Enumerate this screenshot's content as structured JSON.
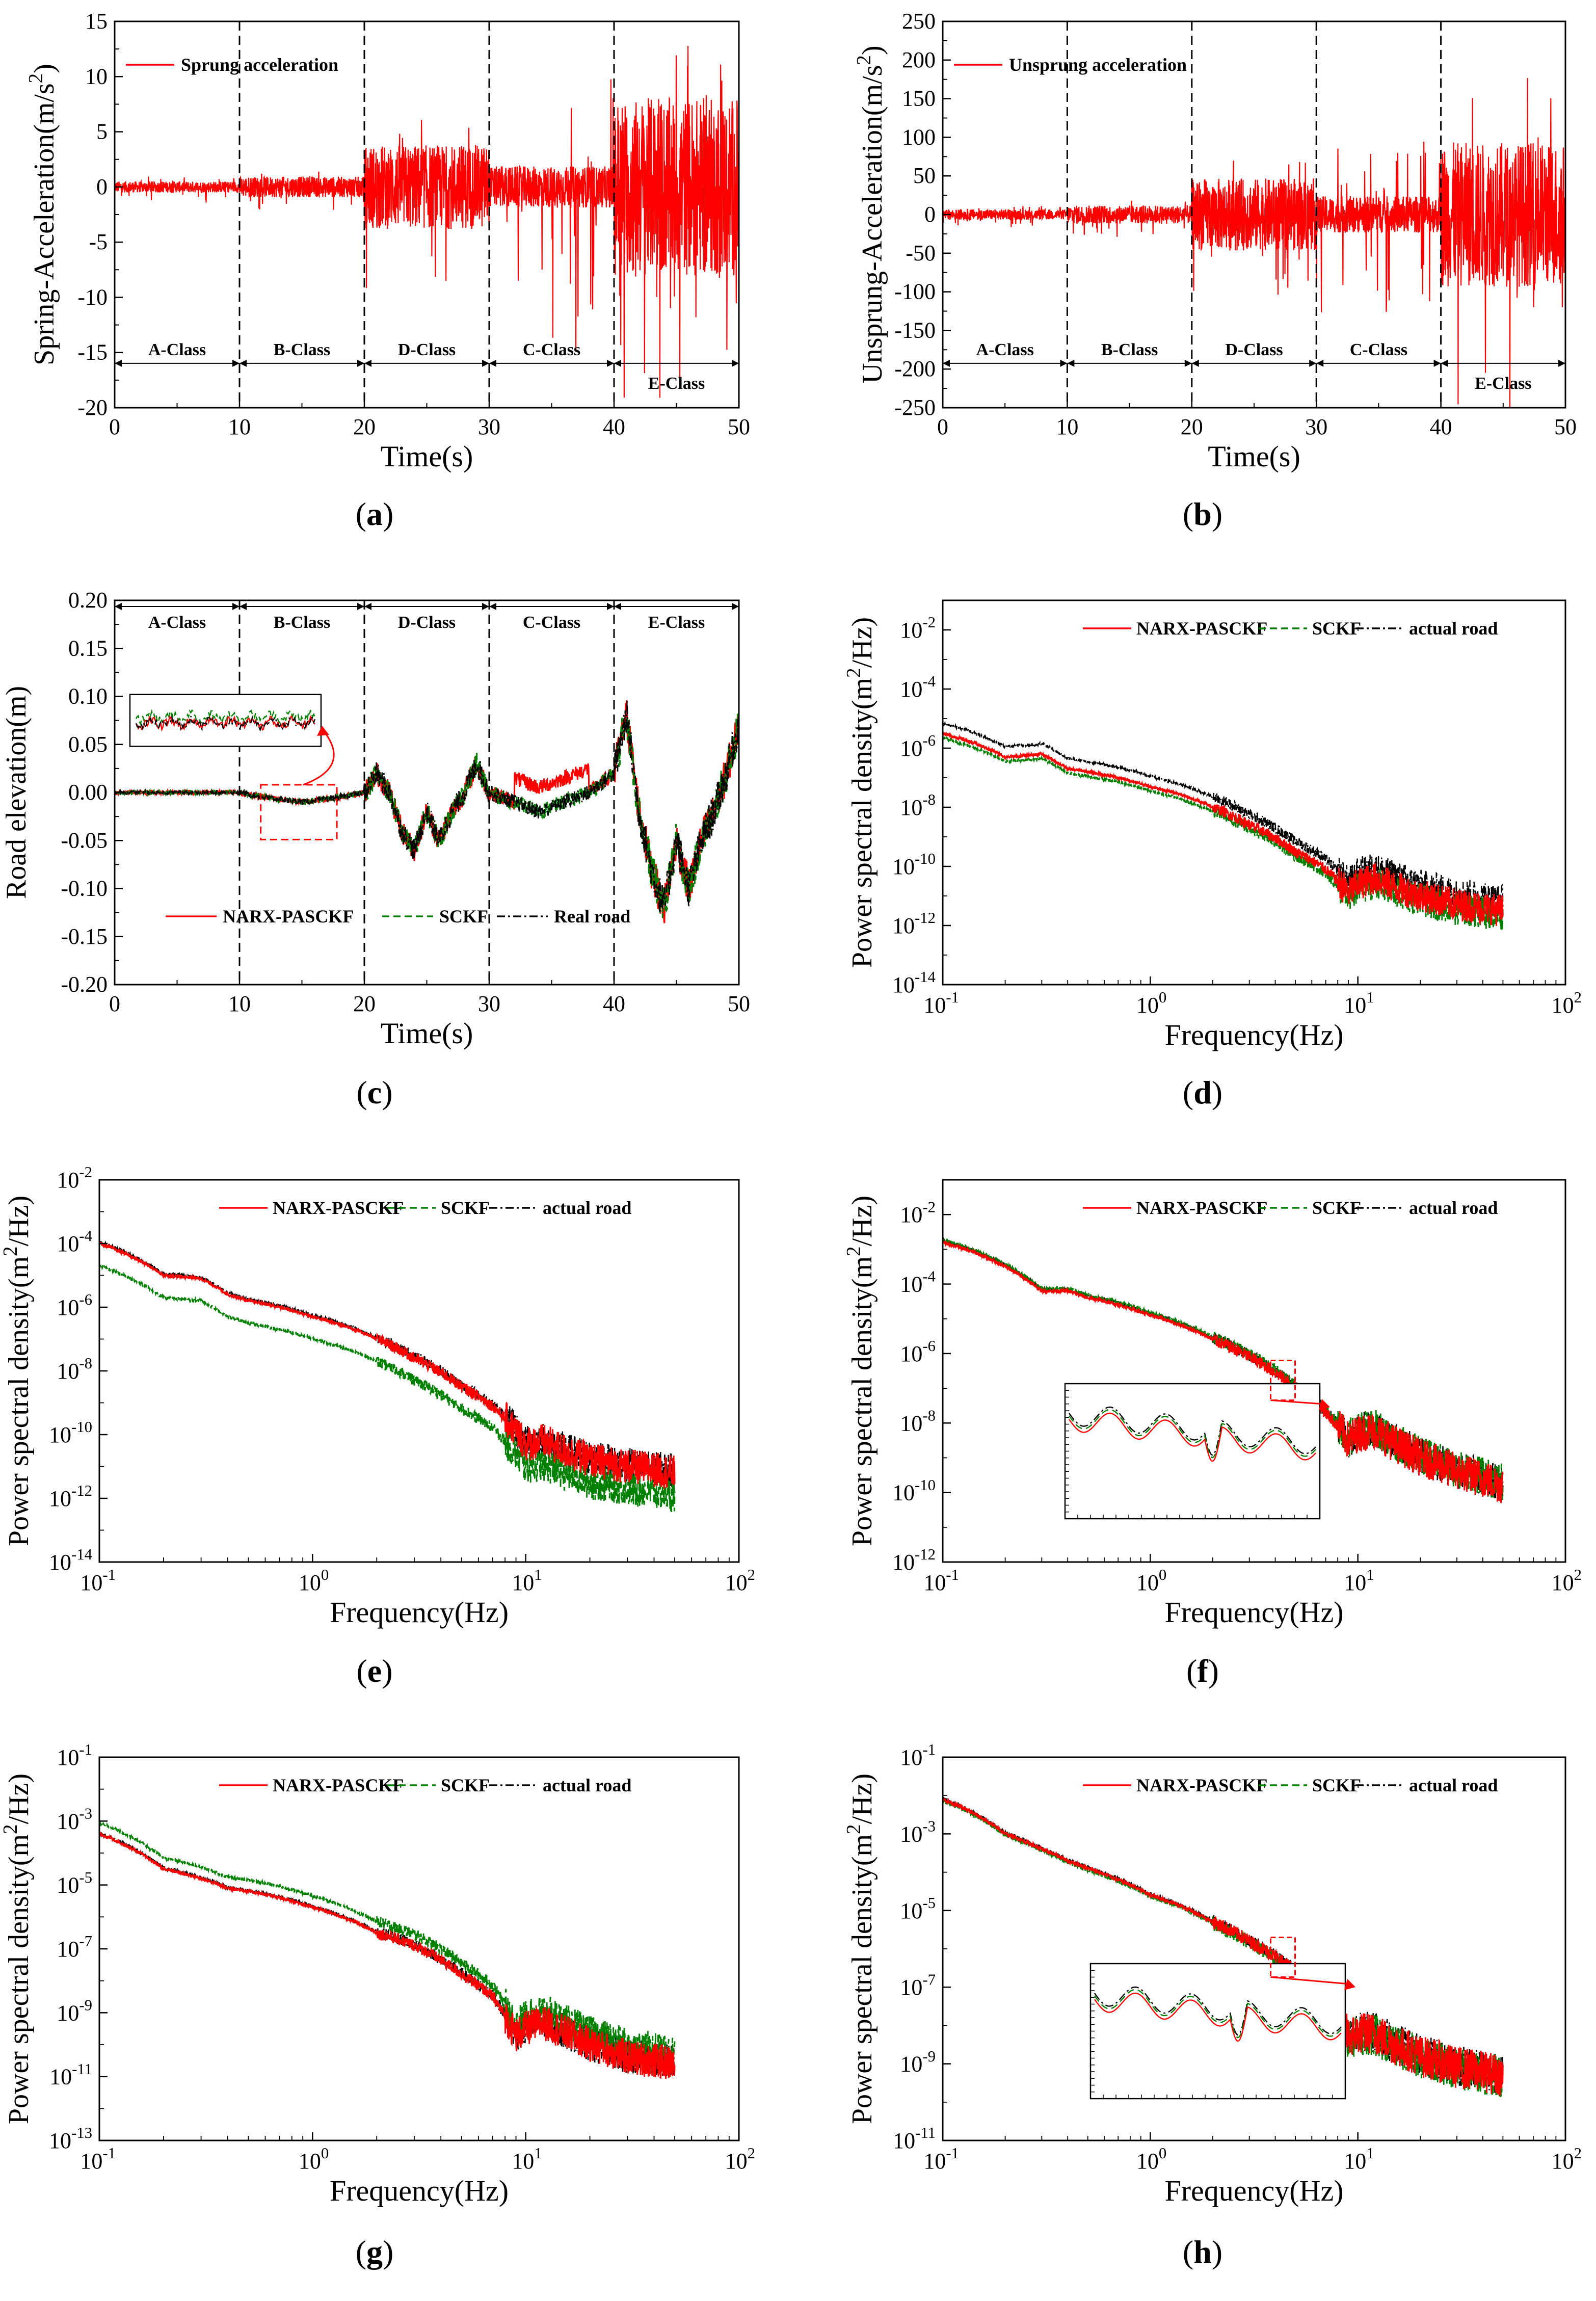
{
  "colors": {
    "primary": "#ff0000",
    "secondary": "#008000",
    "reference": "#000000",
    "marker": "#ff0000"
  },
  "chart_data": [
    {
      "panel": "(a)",
      "type": "line",
      "title": "",
      "xlabel": "Time(s)",
      "ylabel": "Spring-Acceleration(m/s²)",
      "xlim": [
        0,
        50
      ],
      "ylim": [
        -20,
        15
      ],
      "xticks": [
        0,
        10,
        20,
        30,
        40,
        50
      ],
      "yticks": [
        -20,
        -15,
        -10,
        -5,
        0,
        5,
        10,
        15
      ],
      "scale": "linear",
      "grid": false,
      "legend_position": "top-left",
      "classes": [
        "A-Class",
        "B-Class",
        "D-Class",
        "C-Class",
        "E-Class"
      ],
      "class_boundaries": [
        10,
        20,
        30,
        40
      ],
      "series": [
        {
          "name": "Sprung acceleration",
          "amplitude": [
            0.6,
            1.1,
            4.5,
            2.2,
            9.5
          ],
          "peak": [
            1.2,
            1.8,
            8.5,
            13.0,
            16.0
          ]
        }
      ]
    },
    {
      "panel": "(b)",
      "type": "line",
      "title": "",
      "xlabel": "Time(s)",
      "ylabel": "Unsprung-Acceleration(m/s²)",
      "xlim": [
        0,
        50
      ],
      "ylim": [
        -250,
        250
      ],
      "xticks": [
        0,
        10,
        20,
        30,
        40,
        50
      ],
      "yticks": [
        -250,
        -200,
        -150,
        -100,
        -50,
        0,
        50,
        100,
        150,
        200,
        250
      ],
      "scale": "linear",
      "grid": false,
      "legend_position": "top-left",
      "classes": [
        "A-Class",
        "B-Class",
        "D-Class",
        "C-Class",
        "E-Class"
      ],
      "class_boundaries": [
        10,
        20,
        30,
        40
      ],
      "series": [
        {
          "name": "Unsprung acceleration",
          "amplitude": [
            8,
            14,
            55,
            28,
            110
          ],
          "peak": [
            15,
            25,
            90,
            130,
            225
          ]
        }
      ]
    },
    {
      "panel": "(c)",
      "type": "line",
      "title": "",
      "xlabel": "Time(s)",
      "ylabel": "Road elevation(m)",
      "xlim": [
        0,
        50
      ],
      "ylim": [
        -0.2,
        0.2
      ],
      "xticks": [
        0,
        10,
        20,
        30,
        40,
        50
      ],
      "yticks": [
        -0.2,
        -0.15,
        -0.1,
        -0.05,
        0.0,
        0.05,
        0.1,
        0.15,
        0.2
      ],
      "scale": "linear",
      "grid": false,
      "legend_position": "bottom-center",
      "classes": [
        "A-Class",
        "B-Class",
        "D-Class",
        "C-Class",
        "E-Class"
      ],
      "class_boundaries": [
        10,
        20,
        30,
        40
      ],
      "profile": {
        "t": [
          0,
          5,
          10,
          12,
          15,
          18,
          20,
          21,
          22,
          23,
          24,
          25,
          26,
          27,
          28,
          29,
          30,
          32,
          34,
          36,
          38,
          40,
          41,
          42,
          43,
          44,
          45,
          46,
          47,
          48,
          49,
          50
        ],
        "z": [
          0.0,
          0.0,
          0.0,
          -0.005,
          -0.01,
          -0.005,
          0.0,
          0.02,
          0.0,
          -0.04,
          -0.06,
          -0.02,
          -0.05,
          -0.02,
          0.0,
          0.03,
          0.0,
          -0.01,
          -0.02,
          -0.01,
          0.0,
          0.02,
          0.08,
          -0.02,
          -0.08,
          -0.12,
          -0.05,
          -0.1,
          -0.05,
          -0.02,
          0.02,
          0.07
        ]
      },
      "series": [
        {
          "name": "NARX-PASCKF"
        },
        {
          "name": "SCKF"
        },
        {
          "name": "Real road"
        }
      ]
    },
    {
      "panel": "(d)",
      "type": "line",
      "title": "",
      "xlabel": "Frequency(Hz)",
      "ylabel": "Power spectral density(m²/Hz)",
      "xlim": [
        0.1,
        100
      ],
      "xticks": [
        0.1,
        1,
        10,
        100
      ],
      "ylim_exp": [
        -14,
        -1
      ],
      "ytick_exp": [
        -14,
        -12,
        -10,
        -8,
        -6,
        -4,
        -2
      ],
      "scale": "log-log",
      "grid": false,
      "legend_position": "top-center",
      "knots_f": [
        0.1,
        0.2,
        0.3,
        0.4,
        0.5,
        0.7,
        1,
        2,
        3,
        5,
        7,
        9,
        10,
        12,
        15,
        20,
        30,
        50
      ],
      "knots_log_psd": [
        -5.5,
        -6.3,
        -6.2,
        -6.7,
        -6.8,
        -7.0,
        -7.3,
        -8.0,
        -8.6,
        -9.5,
        -10.1,
        -10.9,
        -10.6,
        -10.4,
        -10.7,
        -11.0,
        -11.3,
        -11.5
      ],
      "series": [
        {
          "name": "NARX-PASCKF",
          "offset": 0.0
        },
        {
          "name": "SCKF",
          "offset": -0.15
        },
        {
          "name": "actual road",
          "offset": 0.35
        }
      ]
    },
    {
      "panel": "(e)",
      "type": "line",
      "title": "",
      "xlabel": "Frequency(Hz)",
      "ylabel": "Power spectral density(m²/Hz)",
      "xlim": [
        0.1,
        100
      ],
      "xticks": [
        0.1,
        1,
        10,
        100
      ],
      "ylim_exp": [
        -14,
        -2
      ],
      "ytick_exp": [
        -14,
        -12,
        -10,
        -8,
        -6,
        -4,
        -2
      ],
      "scale": "log-log",
      "grid": false,
      "legend_position": "top-center",
      "knots_f": [
        0.1,
        0.2,
        0.3,
        0.4,
        0.5,
        0.7,
        1,
        2,
        3,
        5,
        7,
        9,
        10,
        12,
        15,
        20,
        30,
        50
      ],
      "knots_log_psd": [
        -4.0,
        -5.0,
        -5.1,
        -5.6,
        -5.8,
        -6.0,
        -6.3,
        -7.0,
        -7.6,
        -8.5,
        -9.1,
        -9.9,
        -10.3,
        -10.2,
        -10.5,
        -10.8,
        -11.0,
        -11.2
      ],
      "series": [
        {
          "name": "NARX-PASCKF",
          "offset": 0.0
        },
        {
          "name": "SCKF",
          "offset": -0.7
        },
        {
          "name": "actual road",
          "offset": 0.05
        }
      ]
    },
    {
      "panel": "(f)",
      "type": "line",
      "title": "",
      "xlabel": "Frequency(Hz)",
      "ylabel": "Power spectral density(m²/Hz)",
      "xlim": [
        0.1,
        100
      ],
      "xticks": [
        0.1,
        1,
        10,
        100
      ],
      "ylim_exp": [
        -12,
        -1
      ],
      "ytick_exp": [
        -12,
        -10,
        -8,
        -6,
        -4,
        -2
      ],
      "scale": "log-log",
      "grid": false,
      "legend_position": "top-center",
      "knots_f": [
        0.1,
        0.2,
        0.3,
        0.4,
        0.5,
        0.7,
        1,
        2,
        3,
        5,
        7,
        9,
        10,
        12,
        15,
        20,
        30,
        50
      ],
      "knots_log_psd": [
        -2.8,
        -3.5,
        -4.2,
        -4.2,
        -4.4,
        -4.6,
        -4.9,
        -5.6,
        -6.1,
        -7.0,
        -7.7,
        -8.5,
        -8.3,
        -8.2,
        -8.6,
        -9.0,
        -9.4,
        -9.8
      ],
      "series": [
        {
          "name": "NARX-PASCKF",
          "offset": 0.0
        },
        {
          "name": "SCKF",
          "offset": 0.07
        },
        {
          "name": "actual road",
          "offset": 0.05
        }
      ]
    },
    {
      "panel": "(g)",
      "type": "line",
      "title": "",
      "xlabel": "Frequency(Hz)",
      "ylabel": "Power spectral density(m²/Hz)",
      "xlim": [
        0.1,
        100
      ],
      "xticks": [
        0.1,
        1,
        10,
        100
      ],
      "ylim_exp": [
        -13,
        -1
      ],
      "ytick_exp": [
        -13,
        -11,
        -9,
        -7,
        -5,
        -3,
        -1
      ],
      "scale": "log-log",
      "grid": false,
      "legend_position": "top-center",
      "knots_f": [
        0.1,
        0.2,
        0.3,
        0.4,
        0.5,
        0.7,
        1,
        2,
        3,
        5,
        7,
        9,
        10,
        12,
        15,
        20,
        30,
        50
      ],
      "knots_log_psd": [
        -3.4,
        -4.5,
        -4.8,
        -5.1,
        -5.2,
        -5.4,
        -5.7,
        -6.5,
        -6.9,
        -7.8,
        -8.5,
        -9.7,
        -9.5,
        -9.3,
        -9.6,
        -10.0,
        -10.4,
        -10.6
      ],
      "series": [
        {
          "name": "NARX-PASCKF",
          "offset": 0.0
        },
        {
          "name": "SCKF",
          "offset": 0.35
        },
        {
          "name": "actual road",
          "offset": 0.03
        }
      ]
    },
    {
      "panel": "(h)",
      "type": "line",
      "title": "",
      "xlabel": "Frequency(Hz)",
      "ylabel": "Power spectral density(m²/Hz)",
      "xlim": [
        0.1,
        100
      ],
      "xticks": [
        0.1,
        1,
        10,
        100
      ],
      "ylim_exp": [
        -11,
        -1
      ],
      "ytick_exp": [
        -11,
        -9,
        -7,
        -5,
        -3,
        -1
      ],
      "scale": "log-log",
      "grid": false,
      "legend_position": "top-center",
      "knots_f": [
        0.1,
        0.2,
        0.3,
        0.4,
        0.5,
        0.7,
        1,
        2,
        3,
        5,
        7,
        9,
        10,
        12,
        15,
        20,
        30,
        50
      ],
      "knots_log_psd": [
        -2.1,
        -3.0,
        -3.4,
        -3.7,
        -3.9,
        -4.2,
        -4.6,
        -5.3,
        -5.8,
        -6.6,
        -7.3,
        -8.3,
        -8.2,
        -8.2,
        -8.5,
        -8.8,
        -9.1,
        -9.3
      ],
      "series": [
        {
          "name": "NARX-PASCKF",
          "offset": 0.0
        },
        {
          "name": "SCKF",
          "offset": -0.04
        },
        {
          "name": "actual road",
          "offset": 0.02
        }
      ]
    }
  ]
}
